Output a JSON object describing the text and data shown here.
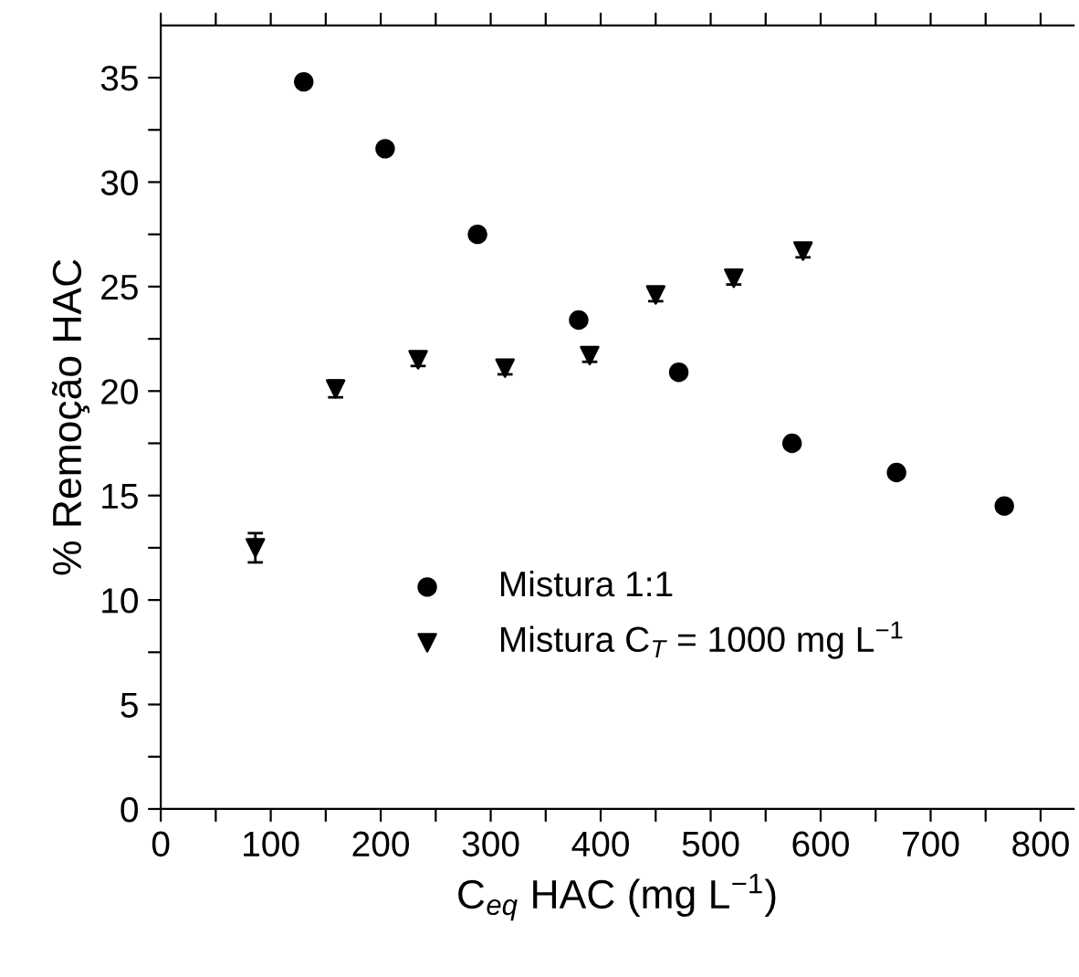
{
  "chart_data": {
    "type": "scatter",
    "xlabel": "C$_{eq}$ HAC (mg L$^{−1}$)",
    "ylabel": "% Remoção HAC",
    "series": [
      {
        "name": "Mistura 1:1",
        "color": "#000000",
        "marker": "circle",
        "x": [
          130,
          204,
          288,
          380,
          471,
          574,
          669,
          767
        ],
        "values": [
          34.8,
          31.6,
          27.5,
          23.4,
          20.9,
          17.5,
          16.1,
          14.5
        ]
      },
      {
        "name": "Mistura C$_{T}$ = 1000 mg L$^{−1}$",
        "color": "#000000",
        "marker": "triangle",
        "x": [
          86,
          159,
          234,
          313,
          390,
          450,
          521,
          584
        ],
        "values": [
          12.5,
          20.1,
          21.5,
          21.1,
          21.7,
          24.6,
          25.4,
          26.7
        ],
        "errors": [
          0.7,
          0.4,
          0.3,
          0.3,
          0.3,
          0.3,
          0.3,
          0.3
        ]
      }
    ],
    "xlim": [
      0,
      830
    ],
    "ylim": [
      0,
      37.5
    ],
    "xticks": [
      0,
      {
        "value": 50,
        "label": null
      },
      100,
      {
        "value": 150,
        "label": null
      },
      200,
      {
        "value": 250,
        "label": null
      },
      300,
      {
        "value": 350,
        "label": null
      },
      400,
      {
        "value": 450,
        "label": null
      },
      500,
      {
        "value": 550,
        "label": null
      },
      600,
      {
        "value": 650,
        "label": null
      },
      700,
      {
        "value": 750,
        "label": null
      },
      800
    ],
    "yticks": [
      0,
      {
        "value": 2.5,
        "label": null
      },
      5,
      {
        "value": 7.5,
        "label": null
      },
      10,
      {
        "value": 12.5,
        "label": null
      },
      15,
      {
        "value": 17.5,
        "label": null
      },
      20,
      {
        "value": 22.5,
        "label": null
      },
      25,
      {
        "value": 27.5,
        "label": null
      },
      30,
      {
        "value": 32.5,
        "label": null
      },
      35
    ],
    "grid": false,
    "legend": "bottom right"
  }
}
